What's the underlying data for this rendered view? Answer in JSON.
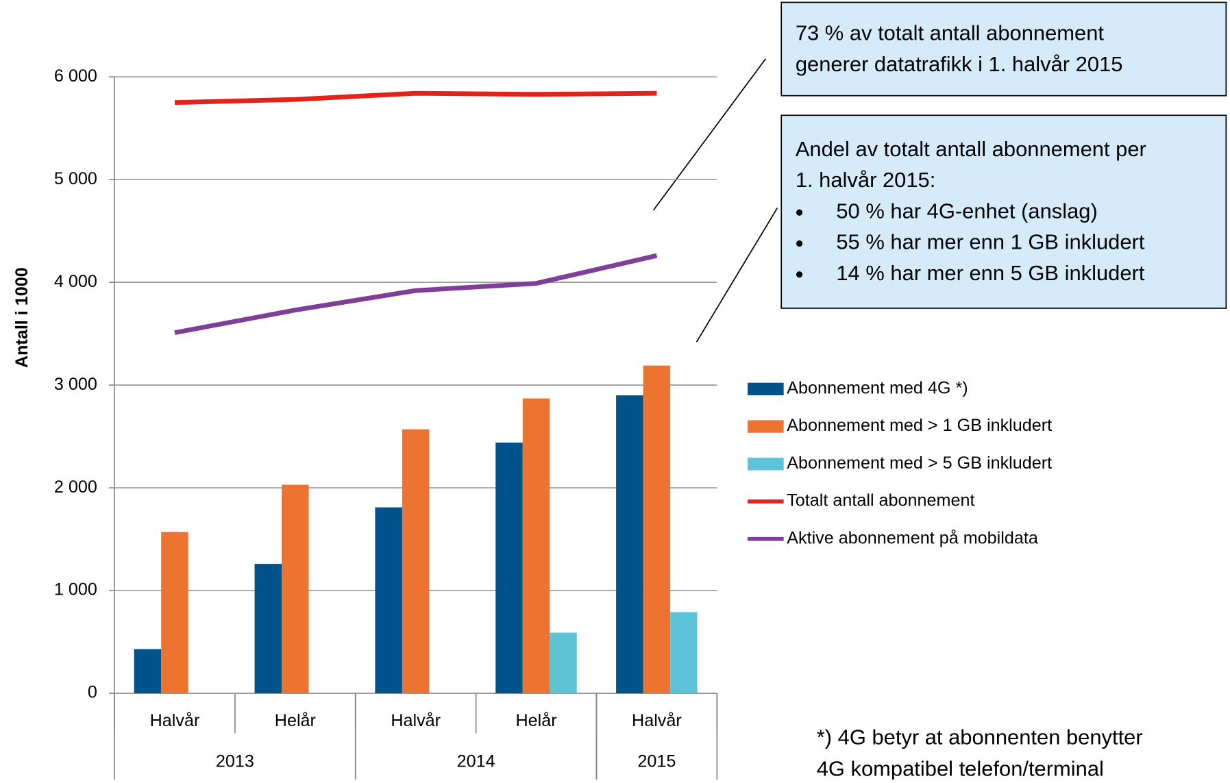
{
  "chart_data": {
    "type": "bar_line",
    "y_label": "Antall i 1000",
    "categories": [
      "Halvår",
      "Helår",
      "Halvår",
      "Helår",
      "Halvår"
    ],
    "year_groups": [
      {
        "label": "2013",
        "count": 2
      },
      {
        "label": "2014",
        "count": 2
      },
      {
        "label": "2015",
        "count": 1
      }
    ],
    "series": [
      {
        "name": "Abonnement med 4G *)",
        "kind": "bar",
        "color": "#00538a",
        "values": [
          430,
          1260,
          1810,
          2440,
          2900
        ]
      },
      {
        "name": "Abonnement med > 1 GB inkludert",
        "kind": "bar",
        "color": "#ec7330",
        "values": [
          1570,
          2030,
          2570,
          2870,
          3190
        ]
      },
      {
        "name": "Abonnement med > 5 GB inkludert",
        "kind": "bar",
        "color": "#5dc3d6",
        "values": [
          null,
          null,
          null,
          590,
          790
        ]
      },
      {
        "name": "Totalt antall abonnement",
        "kind": "line",
        "color": "#e3231b",
        "values": [
          5750,
          5780,
          5840,
          5830,
          5840
        ]
      },
      {
        "name": "Aktive abonnement på mobildata",
        "kind": "line",
        "color": "#7f3f98",
        "values": [
          3510,
          3730,
          3920,
          3990,
          4260
        ]
      }
    ],
    "ylim": [
      0,
      6000
    ],
    "yticks": [
      0,
      {
        "value": 1000,
        "label": "1 000"
      },
      {
        "value": 2000,
        "label": "2 000"
      },
      {
        "value": 3000,
        "label": "3 000"
      },
      {
        "value": 4000,
        "label": "4 000"
      },
      {
        "value": 5000,
        "label": "5 000"
      },
      {
        "value": 6000,
        "label": "6 000"
      }
    ],
    "grid": true,
    "legend": "right",
    "annotations": [
      {
        "lines": [
          "73 % av totalt antall abonnement",
          "generer datatrafikk i 1. halvår 2015"
        ],
        "bullets": []
      },
      {
        "lines": [
          "Andel av totalt antall abonnement per",
          "1. halvår 2015:"
        ],
        "bullets": [
          "50 % har 4G-enhet (anslag)",
          "55 % har mer enn 1 GB inkludert",
          "14 % har mer enn 5 GB inkludert"
        ]
      }
    ],
    "footnote": [
      "*) 4G betyr at abonnenten benytter",
      "4G kompatibel telefon/terminal"
    ]
  }
}
